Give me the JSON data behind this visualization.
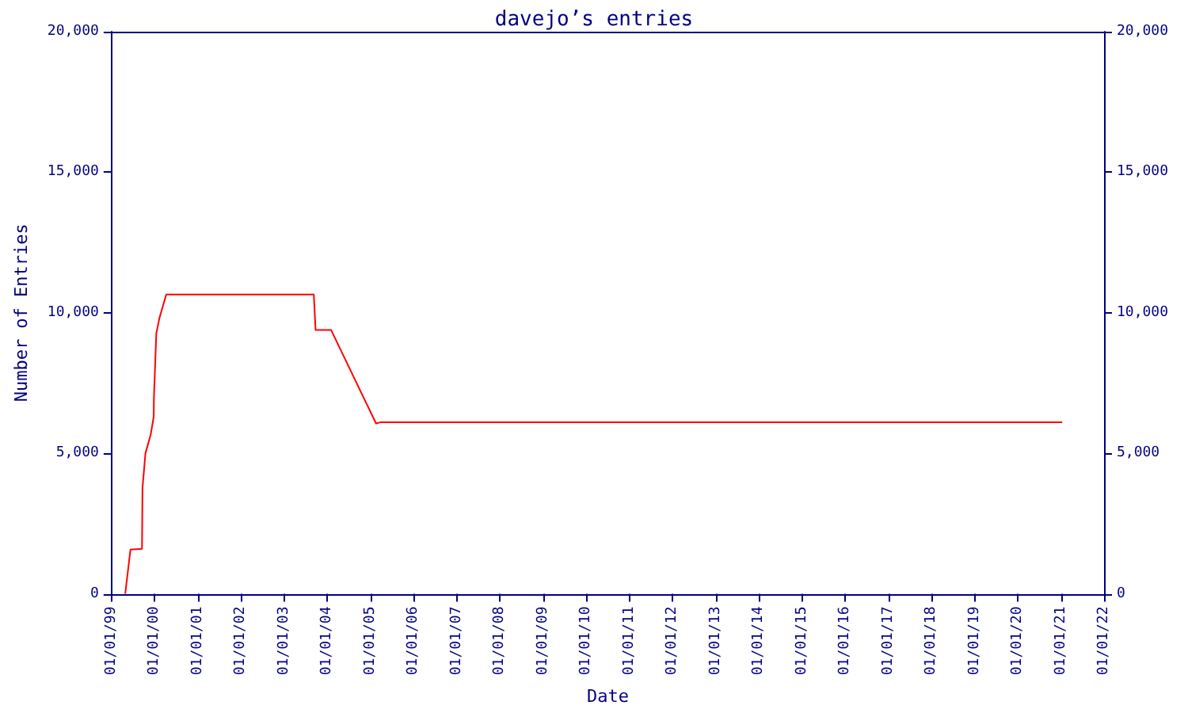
{
  "chart_data": {
    "type": "line",
    "title": "davejo’s entries",
    "xlabel": "Date",
    "ylabel": "Number of Entries",
    "x": [
      "1999-04-27",
      "1999-06-10",
      "1999-09-16",
      "1999-09-20",
      "1999-10-15",
      "1999-11-28",
      "1999-12-24",
      "1999-12-26",
      "2000-01-15",
      "2000-02-10",
      "2000-04-08",
      "2003-09-09",
      "2003-09-24",
      "2004-02-02",
      "2005-02-17",
      "2005-03-25",
      "2021-01-12"
    ],
    "series": [
      {
        "color": "#ff0000",
        "values": [
          0,
          1570,
          1600,
          3760,
          5000,
          5650,
          6300,
          7000,
          9260,
          9800,
          10650,
          10650,
          9390,
          9390,
          6060,
          6100,
          6100
        ]
      }
    ],
    "xlim": [
      "1999-01-01",
      "2022-01-01"
    ],
    "xticks": [
      {
        "value": "1999-01-01",
        "label": "01/01/99"
      },
      {
        "value": "2000-01-01",
        "label": "01/01/00"
      },
      {
        "value": "2001-01-01",
        "label": "01/01/01"
      },
      {
        "value": "2002-01-01",
        "label": "01/01/02"
      },
      {
        "value": "2003-01-01",
        "label": "01/01/03"
      },
      {
        "value": "2004-01-01",
        "label": "01/01/04"
      },
      {
        "value": "2005-01-01",
        "label": "01/01/05"
      },
      {
        "value": "2006-01-01",
        "label": "01/01/06"
      },
      {
        "value": "2007-01-01",
        "label": "01/01/07"
      },
      {
        "value": "2008-01-01",
        "label": "01/01/08"
      },
      {
        "value": "2009-01-01",
        "label": "01/01/09"
      },
      {
        "value": "2010-01-01",
        "label": "01/01/10"
      },
      {
        "value": "2011-01-01",
        "label": "01/01/11"
      },
      {
        "value": "2012-01-01",
        "label": "01/01/12"
      },
      {
        "value": "2013-01-01",
        "label": "01/01/13"
      },
      {
        "value": "2014-01-01",
        "label": "01/01/14"
      },
      {
        "value": "2015-01-01",
        "label": "01/01/15"
      },
      {
        "value": "2016-01-01",
        "label": "01/01/16"
      },
      {
        "value": "2017-01-01",
        "label": "01/01/17"
      },
      {
        "value": "2018-01-01",
        "label": "01/01/18"
      },
      {
        "value": "2019-01-01",
        "label": "01/01/19"
      },
      {
        "value": "2020-01-01",
        "label": "01/01/20"
      },
      {
        "value": "2021-01-01",
        "label": "01/01/21"
      },
      {
        "value": "2022-01-01",
        "label": "01/01/22"
      }
    ],
    "ylim": [
      0,
      20000
    ],
    "yticks": [
      0,
      {
        "value": 5000,
        "label": "5,000"
      },
      {
        "value": 10000,
        "label": "10,000"
      },
      {
        "value": 15000,
        "label": "15,000"
      },
      {
        "value": 20000,
        "label": "20,000"
      }
    ],
    "y2lim": [
      0,
      20000
    ],
    "y2ticks": [
      0,
      {
        "value": 5000,
        "label": "5,000"
      },
      {
        "value": 10000,
        "label": "10,000"
      },
      {
        "value": 15000,
        "label": "15,000"
      },
      {
        "value": 20000,
        "label": "20,000"
      }
    ],
    "grid": false,
    "marker": "none",
    "line_style": "solid"
  }
}
